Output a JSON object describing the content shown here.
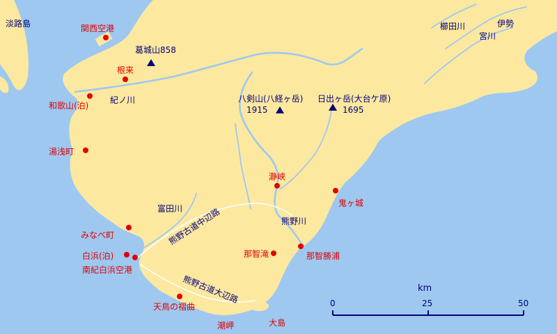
{
  "places_red": [
    {
      "id": "kansai-airport",
      "label": "関西空港"
    },
    {
      "id": "negoro",
      "label": "根来"
    },
    {
      "id": "wakayama-port",
      "label": "和歌山(泊)"
    },
    {
      "id": "yuasa",
      "label": "湯浅町"
    },
    {
      "id": "dorokyo",
      "label": "瀞峡"
    },
    {
      "id": "onigajo",
      "label": "鬼ヶ城"
    },
    {
      "id": "minabe",
      "label": "みなべ町"
    },
    {
      "id": "shirahama-port",
      "label": "白浜(泊)"
    },
    {
      "id": "nanki-shirahama-airport",
      "label": "南紀白浜空港"
    },
    {
      "id": "nachi-falls",
      "label": "那智滝"
    },
    {
      "id": "nachikatsuura",
      "label": "那智勝浦"
    },
    {
      "id": "tenjinzaki",
      "label": "天鳥の褶曲"
    },
    {
      "id": "shionomisaki",
      "label": "潮岬"
    },
    {
      "id": "oshima",
      "label": "大島"
    }
  ],
  "places_navy": [
    {
      "id": "awaji",
      "label": "淡路島"
    },
    {
      "id": "kushida-river",
      "label": "櫛田川"
    },
    {
      "id": "ise",
      "label": "伊勢"
    },
    {
      "id": "miya-river",
      "label": "宮川"
    },
    {
      "id": "kino-river",
      "label": "紀ノ川"
    },
    {
      "id": "tonda-river",
      "label": "富田川"
    },
    {
      "id": "kumano-river",
      "label": "熊野川"
    }
  ],
  "mountains": [
    {
      "id": "katsuragi",
      "label": "葛城山858"
    },
    {
      "id": "hakkyo",
      "label": "八剣山(八経ヶ岳)",
      "elevation": "1915"
    },
    {
      "id": "hinode",
      "label": "日出ヶ岳(大台ケ原)",
      "elevation": "1695"
    }
  ],
  "routes": [
    {
      "id": "nakahechi",
      "label": "熊野古道中辺路"
    },
    {
      "id": "oohechi",
      "label": "熊野古道大辺路"
    }
  ],
  "scale": {
    "unit": "km",
    "ticks": [
      "0",
      "25",
      "50"
    ]
  },
  "colors": {
    "sea": "#9ec8f0",
    "land": "#fde8a0",
    "red": "#e00000",
    "navy": "#00007a"
  }
}
